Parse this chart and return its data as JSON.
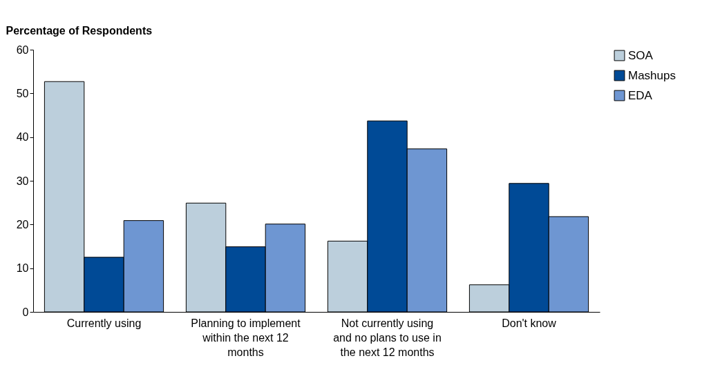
{
  "chart_data": {
    "type": "bar",
    "ylabel": "Percentage of Respondents",
    "categories": [
      "Currently using",
      "Planning to implement within the next 12 months",
      "Not currently using and no plans to use in the next 12 months",
      "Don't know"
    ],
    "series": [
      {
        "name": "SOA",
        "color": "#bccfdc",
        "values": [
          52.7,
          24.9,
          16.2,
          6.2
        ]
      },
      {
        "name": "Mashups",
        "color": "#004a96",
        "values": [
          12.5,
          14.9,
          43.7,
          29.4
        ]
      },
      {
        "name": "EDA",
        "color": "#6e96d2",
        "values": [
          20.9,
          20.1,
          37.3,
          21.8
        ]
      }
    ],
    "ylim": [
      0,
      60
    ],
    "yticks": [
      0,
      10,
      20,
      30,
      40,
      50,
      60
    ],
    "grid": false,
    "legend": "top right"
  }
}
